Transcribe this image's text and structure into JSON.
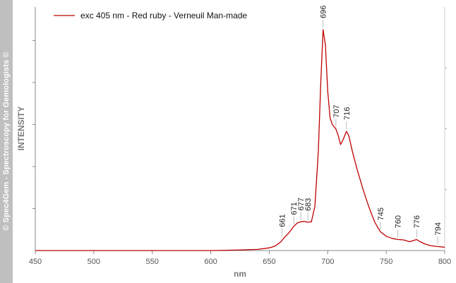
{
  "watermark": "© Spec4Gem - Spectroscopy for Gemologists ©",
  "colors": {
    "series": "#c00000",
    "axis": "#888888",
    "sidebar": "#bfbfbf"
  },
  "chart_data": {
    "type": "line",
    "xlabel": "nm",
    "ylabel": "INTENSITY",
    "xlim": [
      450,
      800
    ],
    "ylim": [
      0,
      1
    ],
    "x_ticks": [
      450,
      500,
      550,
      600,
      650,
      700,
      750,
      800
    ],
    "grid": false,
    "legend_position": "top-left",
    "series": [
      {
        "name": "exc 405 nm - Red ruby - Verneuil Man-made",
        "color": "#c00000",
        "points": [
          [
            450,
            0.0
          ],
          [
            500,
            0.0
          ],
          [
            550,
            0.0
          ],
          [
            600,
            0.0
          ],
          [
            620,
            0.002
          ],
          [
            640,
            0.005
          ],
          [
            650,
            0.012
          ],
          [
            655,
            0.02
          ],
          [
            660,
            0.04
          ],
          [
            663,
            0.06
          ],
          [
            666,
            0.075
          ],
          [
            669,
            0.095
          ],
          [
            671,
            0.11
          ],
          [
            674,
            0.125
          ],
          [
            677,
            0.13
          ],
          [
            680,
            0.132
          ],
          [
            683,
            0.128
          ],
          [
            686,
            0.13
          ],
          [
            689,
            0.2
          ],
          [
            692,
            0.45
          ],
          [
            694,
            0.75
          ],
          [
            696,
            1.0
          ],
          [
            698,
            0.93
          ],
          [
            700,
            0.72
          ],
          [
            702,
            0.6
          ],
          [
            704,
            0.57
          ],
          [
            707,
            0.55
          ],
          [
            709,
            0.52
          ],
          [
            711,
            0.48
          ],
          [
            713,
            0.5
          ],
          [
            716,
            0.54
          ],
          [
            718,
            0.52
          ],
          [
            721,
            0.45
          ],
          [
            725,
            0.37
          ],
          [
            730,
            0.28
          ],
          [
            735,
            0.2
          ],
          [
            740,
            0.13
          ],
          [
            745,
            0.085
          ],
          [
            750,
            0.065
          ],
          [
            755,
            0.055
          ],
          [
            760,
            0.05
          ],
          [
            765,
            0.048
          ],
          [
            770,
            0.04
          ],
          [
            773,
            0.045
          ],
          [
            776,
            0.05
          ],
          [
            779,
            0.04
          ],
          [
            783,
            0.03
          ],
          [
            788,
            0.022
          ],
          [
            794,
            0.018
          ],
          [
            800,
            0.015
          ]
        ]
      }
    ],
    "annotations": [
      {
        "x": 661,
        "y": 0.055,
        "label": "661"
      },
      {
        "x": 671,
        "y": 0.11,
        "label": "671"
      },
      {
        "x": 677,
        "y": 0.13,
        "label": "677"
      },
      {
        "x": 683,
        "y": 0.128,
        "label": "683"
      },
      {
        "x": 696,
        "y": 1.0,
        "label": "696"
      },
      {
        "x": 707,
        "y": 0.55,
        "label": "707"
      },
      {
        "x": 716,
        "y": 0.54,
        "label": "716"
      },
      {
        "x": 745,
        "y": 0.085,
        "label": "745"
      },
      {
        "x": 760,
        "y": 0.05,
        "label": "760"
      },
      {
        "x": 776,
        "y": 0.05,
        "label": "776"
      },
      {
        "x": 794,
        "y": 0.018,
        "label": "794"
      }
    ]
  }
}
